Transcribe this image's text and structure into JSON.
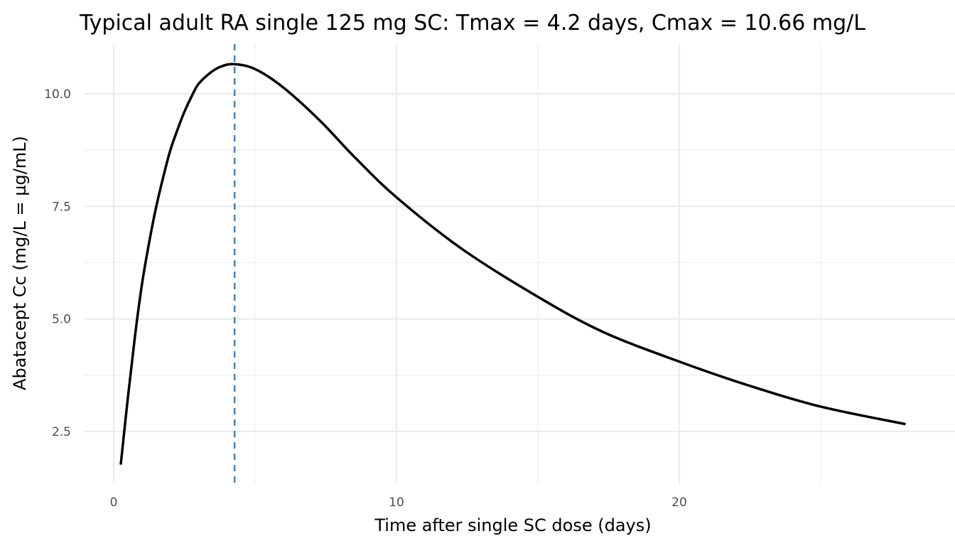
{
  "chart_data": {
    "type": "line",
    "title": "Typical adult RA single 125 mg SC: Tmax = 4.2 days, Cmax = 10.66 mg/L",
    "xlabel": "Time after single SC dose (days)",
    "ylabel": "Abatacept Cc (mg/L = µg/mL)",
    "xlim": [
      -0.6,
      28.7
    ],
    "ylim": [
      1.4,
      11.1
    ],
    "xticks": [
      0,
      10,
      20
    ],
    "xtick_labels": [
      "0",
      "10",
      "20"
    ],
    "yticks": [
      2.5,
      5.0,
      7.5,
      10.0
    ],
    "ytick_labels": [
      "2.5",
      "5.0",
      "7.5",
      "10.0"
    ],
    "grid": true,
    "series": [
      {
        "color": "#000000",
        "x": [
          0.25,
          0.5,
          0.75,
          1.0,
          1.26,
          1.5,
          1.76,
          2.0,
          2.26,
          2.5,
          2.76,
          3.0,
          3.4,
          3.77,
          4.25,
          5.0,
          6.0,
          7.3,
          8.54,
          10,
          12.3,
          15,
          17.3,
          20,
          22.4,
          25,
          28
        ],
        "y": [
          1.76,
          3.24,
          4.6,
          5.77,
          6.72,
          7.48,
          8.17,
          8.74,
          9.21,
          9.6,
          9.95,
          10.22,
          10.46,
          10.6,
          10.66,
          10.55,
          10.14,
          9.4,
          8.58,
          7.7,
          6.56,
          5.49,
          4.71,
          4.05,
          3.53,
          3.05,
          2.66
        ]
      }
    ],
    "vline": {
      "x": 4.2,
      "color": "#4682b4",
      "style": "dashed"
    }
  }
}
